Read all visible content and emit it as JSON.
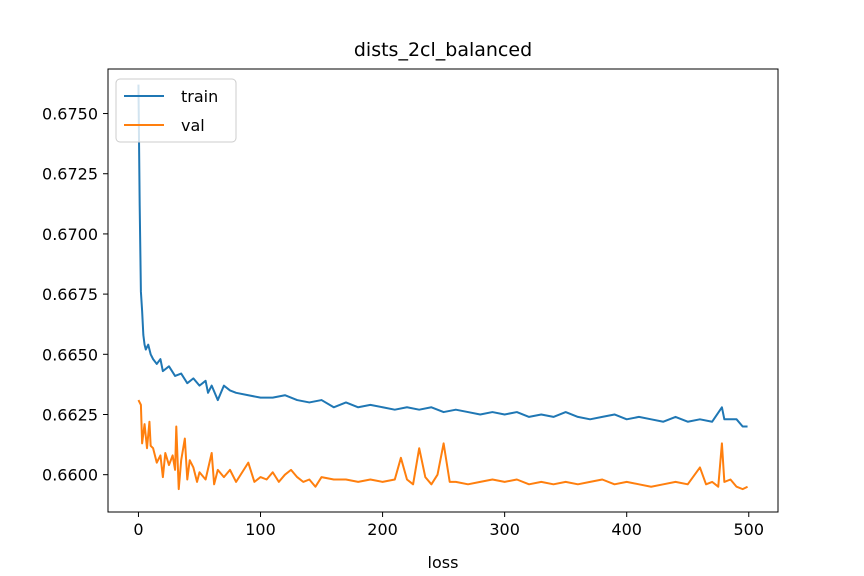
{
  "chart_data": {
    "type": "line",
    "title": "dists_2cl_balanced",
    "xlabel": "loss",
    "ylabel": "",
    "xlim": [
      -24.95,
      523.95
    ],
    "ylim": [
      0.65845,
      0.67685
    ],
    "xticks": [
      0,
      100,
      200,
      300,
      400,
      500
    ],
    "yticks": [
      0.66,
      0.6625,
      0.665,
      0.6675,
      0.67,
      0.6725,
      0.675
    ],
    "ytick_labels": [
      "0.6600",
      "0.6625",
      "0.6650",
      "0.6675",
      "0.6700",
      "0.6725",
      "0.6750"
    ],
    "grid": false,
    "legend_position": "upper left",
    "series": [
      {
        "name": "train",
        "color": "#1f77b4",
        "points": [
          [
            0,
            0.6762
          ],
          [
            1,
            0.6712
          ],
          [
            2,
            0.6676
          ],
          [
            3,
            0.6668
          ],
          [
            4,
            0.6658
          ],
          [
            5,
            0.6654
          ],
          [
            6,
            0.6652
          ],
          [
            8,
            0.6654
          ],
          [
            10,
            0.665
          ],
          [
            12,
            0.6648
          ],
          [
            15,
            0.6646
          ],
          [
            18,
            0.6648
          ],
          [
            20,
            0.6643
          ],
          [
            25,
            0.6645
          ],
          [
            30,
            0.6641
          ],
          [
            35,
            0.6642
          ],
          [
            40,
            0.6638
          ],
          [
            45,
            0.664
          ],
          [
            50,
            0.6637
          ],
          [
            55,
            0.6639
          ],
          [
            57,
            0.6634
          ],
          [
            60,
            0.6637
          ],
          [
            65,
            0.6631
          ],
          [
            70,
            0.6637
          ],
          [
            75,
            0.6635
          ],
          [
            80,
            0.6634
          ],
          [
            90,
            0.6633
          ],
          [
            100,
            0.6632
          ],
          [
            110,
            0.6632
          ],
          [
            120,
            0.6633
          ],
          [
            130,
            0.6631
          ],
          [
            140,
            0.663
          ],
          [
            150,
            0.6631
          ],
          [
            160,
            0.6628
          ],
          [
            170,
            0.663
          ],
          [
            180,
            0.6628
          ],
          [
            190,
            0.6629
          ],
          [
            200,
            0.6628
          ],
          [
            210,
            0.6627
          ],
          [
            220,
            0.6628
          ],
          [
            230,
            0.6627
          ],
          [
            240,
            0.6628
          ],
          [
            250,
            0.6626
          ],
          [
            260,
            0.6627
          ],
          [
            270,
            0.6626
          ],
          [
            280,
            0.6625
          ],
          [
            290,
            0.6626
          ],
          [
            300,
            0.6625
          ],
          [
            310,
            0.6626
          ],
          [
            320,
            0.6624
          ],
          [
            330,
            0.6625
          ],
          [
            340,
            0.6624
          ],
          [
            350,
            0.6626
          ],
          [
            360,
            0.6624
          ],
          [
            370,
            0.6623
          ],
          [
            380,
            0.6624
          ],
          [
            390,
            0.6625
          ],
          [
            400,
            0.6623
          ],
          [
            410,
            0.6624
          ],
          [
            420,
            0.6623
          ],
          [
            430,
            0.6622
          ],
          [
            440,
            0.6624
          ],
          [
            450,
            0.6622
          ],
          [
            460,
            0.6623
          ],
          [
            470,
            0.6622
          ],
          [
            478,
            0.6628
          ],
          [
            480,
            0.6623
          ],
          [
            490,
            0.6623
          ],
          [
            495,
            0.662
          ],
          [
            499,
            0.662
          ]
        ]
      },
      {
        "name": "val",
        "color": "#ff7f0e",
        "points": [
          [
            0,
            0.6631
          ],
          [
            2,
            0.6629
          ],
          [
            3,
            0.6613
          ],
          [
            5,
            0.6621
          ],
          [
            7,
            0.6611
          ],
          [
            9,
            0.6622
          ],
          [
            10,
            0.6612
          ],
          [
            12,
            0.6611
          ],
          [
            15,
            0.6605
          ],
          [
            18,
            0.6608
          ],
          [
            20,
            0.6599
          ],
          [
            22,
            0.6609
          ],
          [
            25,
            0.6604
          ],
          [
            28,
            0.6608
          ],
          [
            30,
            0.6602
          ],
          [
            31,
            0.662
          ],
          [
            33,
            0.6594
          ],
          [
            35,
            0.6606
          ],
          [
            38,
            0.6615
          ],
          [
            40,
            0.6598
          ],
          [
            42,
            0.6606
          ],
          [
            45,
            0.6603
          ],
          [
            48,
            0.6597
          ],
          [
            50,
            0.6601
          ],
          [
            55,
            0.6598
          ],
          [
            60,
            0.6609
          ],
          [
            62,
            0.6596
          ],
          [
            65,
            0.6602
          ],
          [
            70,
            0.6599
          ],
          [
            75,
            0.6602
          ],
          [
            80,
            0.6597
          ],
          [
            90,
            0.6605
          ],
          [
            95,
            0.6597
          ],
          [
            100,
            0.6599
          ],
          [
            105,
            0.6598
          ],
          [
            110,
            0.6601
          ],
          [
            115,
            0.6597
          ],
          [
            120,
            0.66
          ],
          [
            125,
            0.6602
          ],
          [
            130,
            0.6599
          ],
          [
            135,
            0.6597
          ],
          [
            140,
            0.6598
          ],
          [
            145,
            0.6595
          ],
          [
            150,
            0.6599
          ],
          [
            160,
            0.6598
          ],
          [
            170,
            0.6598
          ],
          [
            180,
            0.6597
          ],
          [
            190,
            0.6598
          ],
          [
            200,
            0.6597
          ],
          [
            210,
            0.6598
          ],
          [
            215,
            0.6607
          ],
          [
            220,
            0.6598
          ],
          [
            225,
            0.6596
          ],
          [
            230,
            0.6611
          ],
          [
            235,
            0.6599
          ],
          [
            240,
            0.6596
          ],
          [
            245,
            0.66
          ],
          [
            250,
            0.6613
          ],
          [
            255,
            0.6597
          ],
          [
            260,
            0.6597
          ],
          [
            270,
            0.6596
          ],
          [
            280,
            0.6597
          ],
          [
            290,
            0.6598
          ],
          [
            300,
            0.6597
          ],
          [
            310,
            0.6598
          ],
          [
            320,
            0.6596
          ],
          [
            330,
            0.6597
          ],
          [
            340,
            0.6596
          ],
          [
            350,
            0.6597
          ],
          [
            360,
            0.6596
          ],
          [
            370,
            0.6597
          ],
          [
            380,
            0.6598
          ],
          [
            390,
            0.6596
          ],
          [
            400,
            0.6597
          ],
          [
            410,
            0.6596
          ],
          [
            420,
            0.6595
          ],
          [
            430,
            0.6596
          ],
          [
            440,
            0.6597
          ],
          [
            450,
            0.6596
          ],
          [
            460,
            0.6603
          ],
          [
            465,
            0.6596
          ],
          [
            470,
            0.6597
          ],
          [
            475,
            0.6595
          ],
          [
            478,
            0.6613
          ],
          [
            480,
            0.6597
          ],
          [
            485,
            0.6598
          ],
          [
            490,
            0.6595
          ],
          [
            495,
            0.6594
          ],
          [
            499,
            0.6595
          ]
        ]
      }
    ]
  }
}
